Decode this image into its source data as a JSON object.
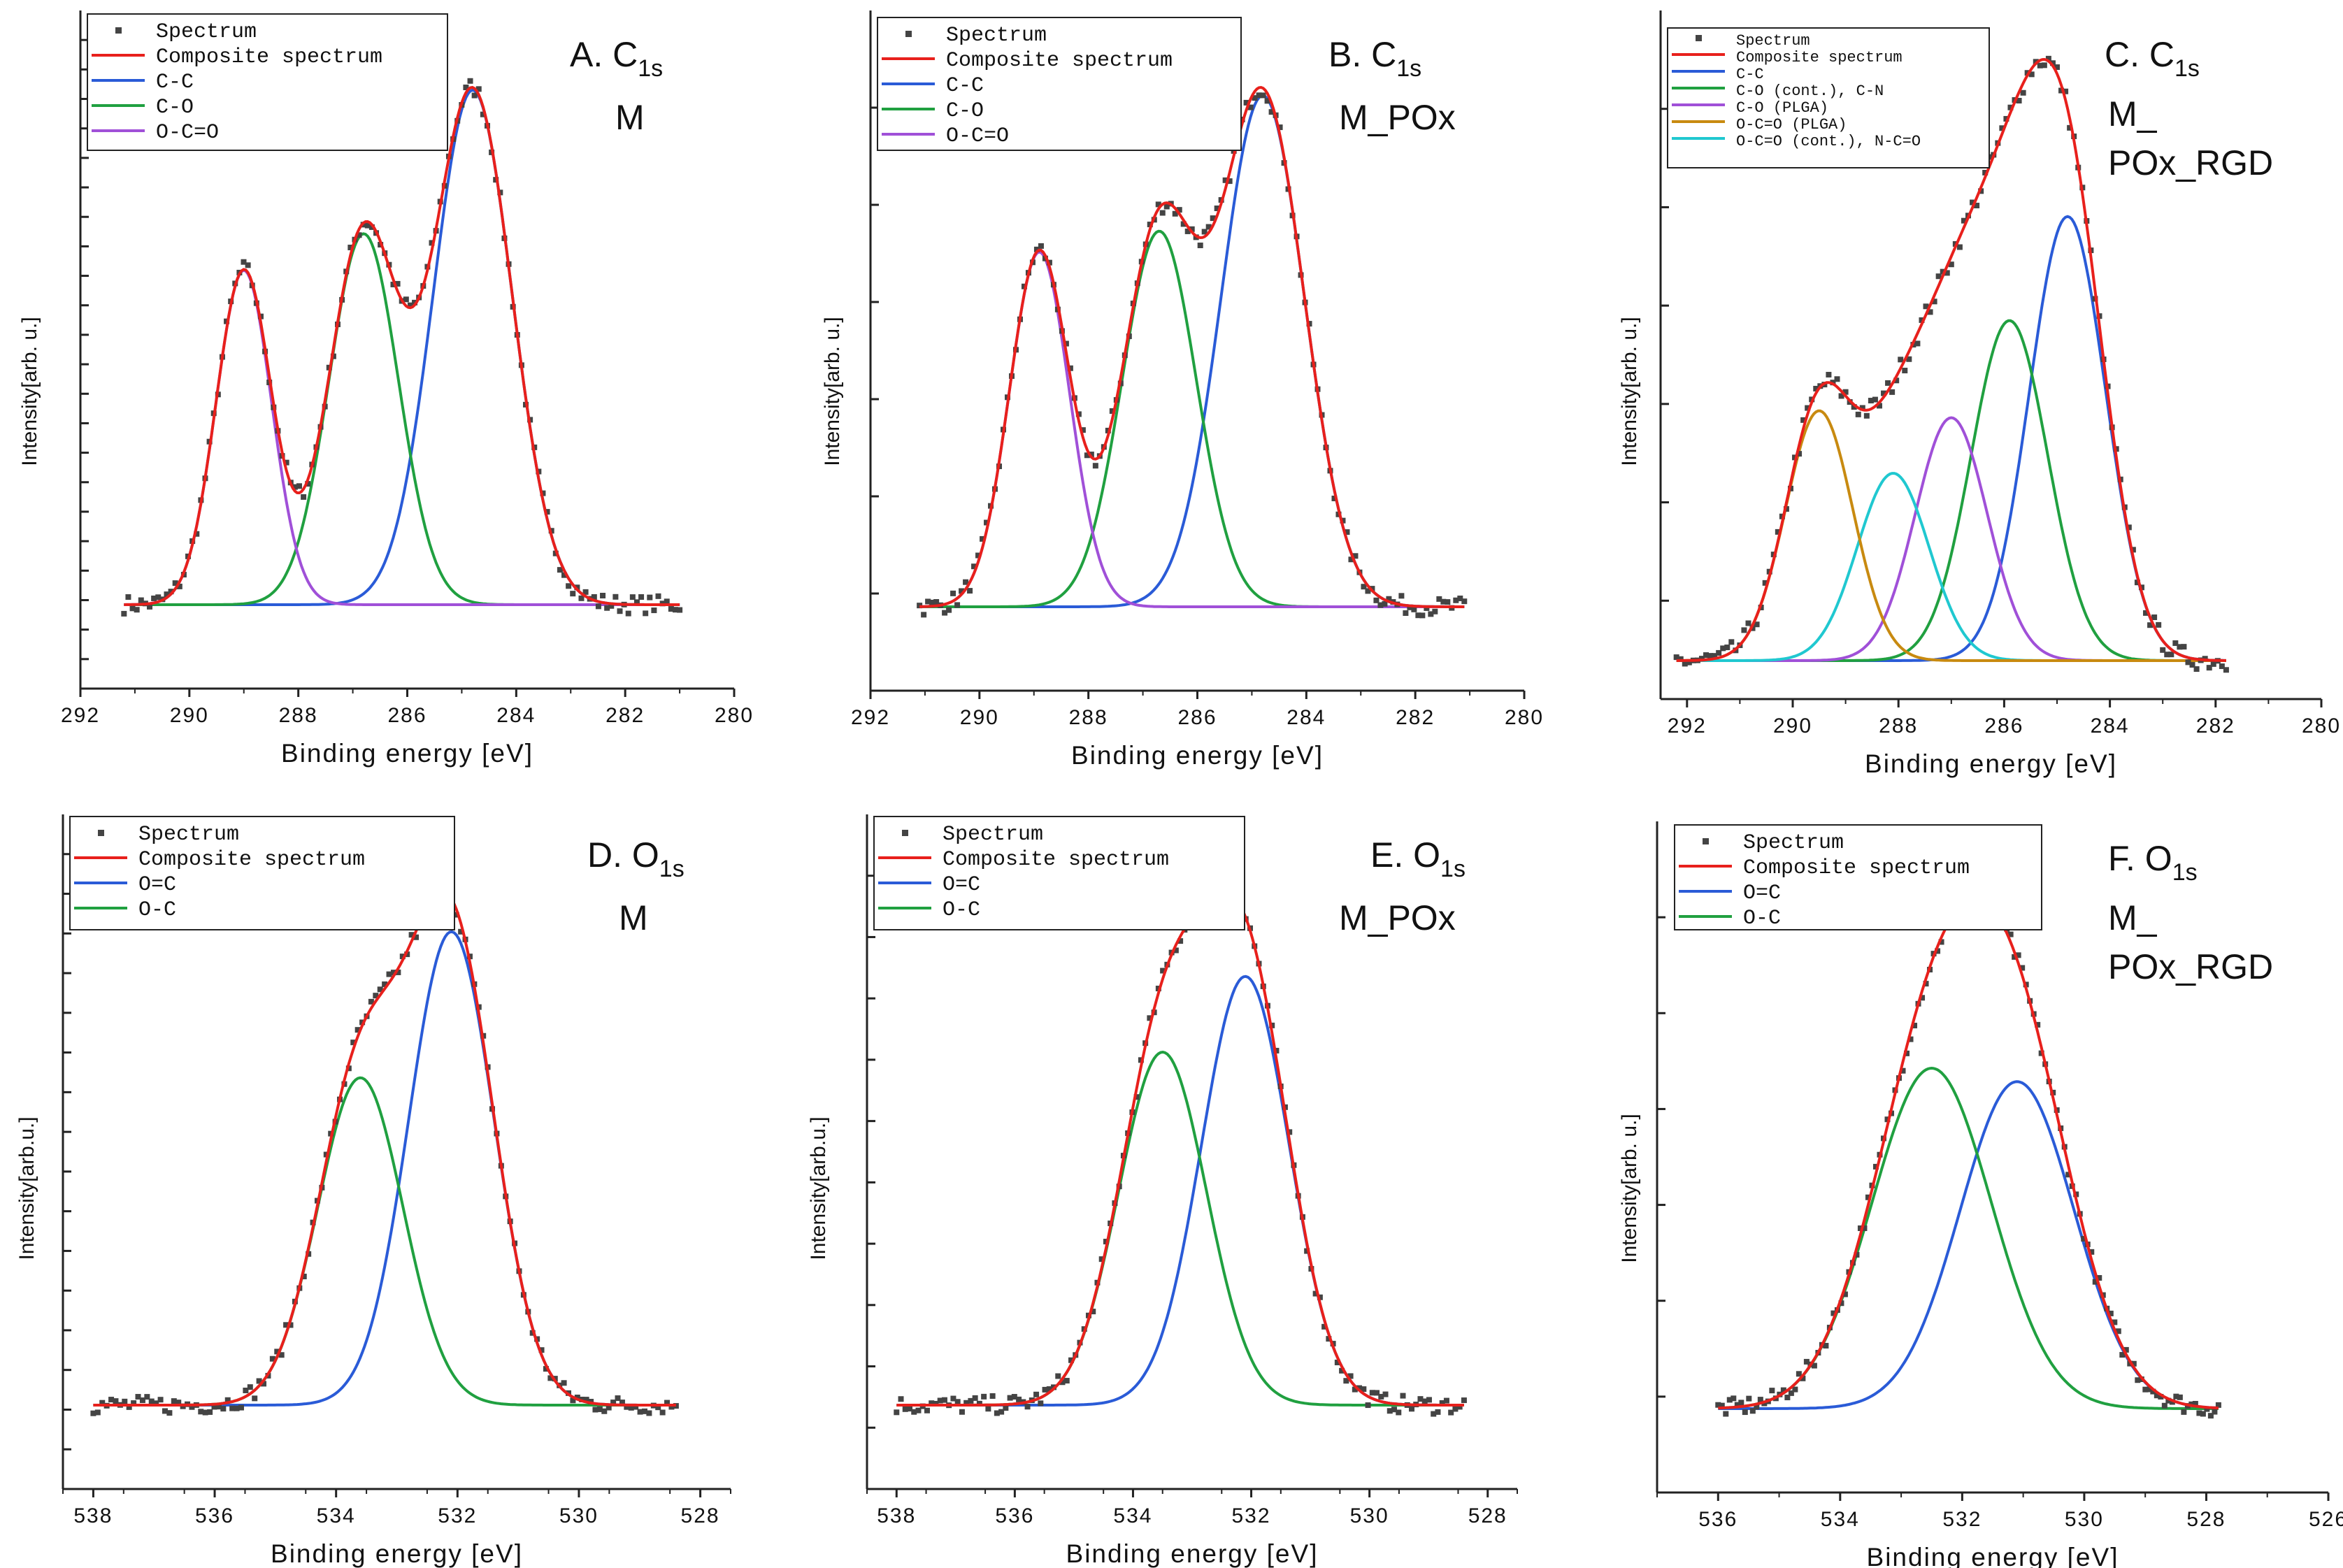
{
  "figure": {
    "background": "#ffffff"
  },
  "colors": {
    "spectrum": "#444444",
    "composite": "#e8201c",
    "blue": "#2a5bd7",
    "green": "#20a040",
    "purple": "#a050d8",
    "orange": "#c88a10",
    "cyan": "#20c8d0"
  },
  "chart_data": [
    {
      "panel": "A",
      "type": "line",
      "xlabel": "Binding energy [eV]",
      "ylabel": "Intensity[arb. u.]",
      "xlim": [
        292,
        280
      ],
      "xticks": [
        292,
        290,
        288,
        286,
        284,
        282,
        280
      ],
      "label_line1": "A. C",
      "label_sub": "1s",
      "label_line2": "M",
      "legend": [
        "Spectrum",
        "Composite spectrum",
        "C-C",
        "C-O",
        "O-C=O"
      ],
      "x_range": [
        291.2,
        281
      ],
      "peak_max": 1.0,
      "background": [
        0.0,
        0.0
      ],
      "components": [
        {
          "name": "C-C",
          "center": 284.8,
          "height": 0.985,
          "fwhm": 1.7,
          "color": "blue"
        },
        {
          "name": "C-O",
          "center": 286.8,
          "height": 0.71,
          "fwhm": 1.5,
          "color": "green"
        },
        {
          "name": "O-C=O",
          "center": 289.0,
          "height": 0.64,
          "fwhm": 1.2,
          "color": "purple"
        }
      ]
    },
    {
      "panel": "B",
      "type": "line",
      "xlabel": "Binding energy [eV]",
      "ylabel": "Intensity[arb. u.]",
      "xlim": [
        292,
        280
      ],
      "xticks": [
        292,
        290,
        288,
        286,
        284,
        282,
        280
      ],
      "label_line1": "B. C",
      "label_sub": "1s",
      "label_line2": "M_POx",
      "legend": [
        "Spectrum",
        "Composite spectrum",
        "C-C",
        "C-O",
        "O-C=O"
      ],
      "x_range": [
        291.1,
        281.1
      ],
      "peak_max": 1.0,
      "background": [
        0.0,
        0.0
      ],
      "components": [
        {
          "name": "C-C",
          "center": 284.8,
          "height": 0.98,
          "fwhm": 1.8,
          "color": "blue"
        },
        {
          "name": "C-O",
          "center": 286.7,
          "height": 0.72,
          "fwhm": 1.6,
          "color": "green"
        },
        {
          "name": "O-C=O",
          "center": 288.9,
          "height": 0.68,
          "fwhm": 1.3,
          "color": "purple"
        }
      ]
    },
    {
      "panel": "C",
      "type": "line",
      "xlabel": "Binding energy [eV]",
      "ylabel": "Intensity[arb. u.]",
      "xlim": [
        292.5,
        280
      ],
      "xticks": [
        292,
        290,
        288,
        286,
        284,
        282,
        280
      ],
      "label_line1": "C. C",
      "label_sub": "1s",
      "label_line2": "M_",
      "label_line3": "POx_RGD",
      "legend": [
        "Spectrum",
        "Composite spectrum",
        "C-C",
        "C-O (cont.), C-N",
        "C-O (PLGA)",
        "O-C=O (PLGA)",
        "O-C=O (cont.), N-C=O"
      ],
      "x_range": [
        292.2,
        281.8
      ],
      "peak_max": 1.0,
      "background": [
        0.0,
        0.0
      ],
      "components": [
        {
          "name": "C-C",
          "center": 284.8,
          "height": 0.64,
          "fwhm": 1.7,
          "color": "blue"
        },
        {
          "name": "C-O (cont.), C-N",
          "center": 285.9,
          "height": 0.49,
          "fwhm": 1.7,
          "color": "green"
        },
        {
          "name": "C-O (PLGA)",
          "center": 287.0,
          "height": 0.35,
          "fwhm": 1.6,
          "color": "purple"
        },
        {
          "name": "O-C=O (cont.), N-C=O",
          "center": 288.1,
          "height": 0.27,
          "fwhm": 1.6,
          "color": "cyan"
        },
        {
          "name": "O-C=O (PLGA)",
          "center": 289.5,
          "height": 0.36,
          "fwhm": 1.5,
          "color": "orange"
        }
      ]
    },
    {
      "panel": "D",
      "type": "line",
      "xlabel": "Binding energy [eV]",
      "ylabel": "Intensity[arb.u.]",
      "xlim": [
        538.5,
        527.5
      ],
      "xticks": [
        538,
        536,
        534,
        532,
        530,
        528
      ],
      "label_line1": "D. O",
      "label_sub": "1s",
      "label_line2": "M",
      "legend": [
        "Spectrum",
        "Composite spectrum",
        "O=C",
        "O-C"
      ],
      "x_range": [
        538,
        528.4
      ],
      "peak_max": 1.0,
      "background": [
        0.0,
        0.0
      ],
      "components": [
        {
          "name": "O=C",
          "center": 532.1,
          "height": 0.94,
          "fwhm": 1.65,
          "color": "blue"
        },
        {
          "name": "O-C",
          "center": 533.6,
          "height": 0.65,
          "fwhm": 1.65,
          "color": "green"
        }
      ]
    },
    {
      "panel": "E",
      "type": "line",
      "xlabel": "Binding energy [eV]",
      "ylabel": "Intensity[arb.u.]",
      "xlim": [
        538.5,
        527.5
      ],
      "xticks": [
        538,
        536,
        534,
        532,
        530,
        528
      ],
      "label_line1": "E. O",
      "label_sub": "1s",
      "label_line2": "M_POx",
      "legend": [
        "Spectrum",
        "Composite spectrum",
        "O=C",
        "O-C"
      ],
      "x_range": [
        538,
        528.4
      ],
      "peak_max": 1.0,
      "background": [
        0.0,
        0.0
      ],
      "components": [
        {
          "name": "O=C",
          "center": 532.1,
          "height": 0.85,
          "fwhm": 1.75,
          "color": "blue"
        },
        {
          "name": "O-C",
          "center": 533.5,
          "height": 0.7,
          "fwhm": 1.75,
          "color": "green"
        }
      ]
    },
    {
      "panel": "F",
      "type": "line",
      "xlabel": "Binding energy [eV]",
      "ylabel": "Intensity[arb. u.]",
      "xlim": [
        537,
        526
      ],
      "xticks": [
        536,
        534,
        532,
        530,
        528,
        526
      ],
      "label_line1": "F. O",
      "label_sub": "1s",
      "label_line2": "M_",
      "label_line3": "POx_RGD",
      "legend": [
        "Spectrum",
        "Composite spectrum",
        "O=C",
        "O-C"
      ],
      "x_range": [
        536,
        527.8
      ],
      "peak_max": 1.0,
      "background": [
        0.0,
        0.0
      ],
      "components": [
        {
          "name": "O=C",
          "center": 531.1,
          "height": 0.73,
          "fwhm": 2.2,
          "color": "blue"
        },
        {
          "name": "O-C",
          "center": 532.5,
          "height": 0.76,
          "fwhm": 2.3,
          "color": "green"
        }
      ]
    }
  ]
}
